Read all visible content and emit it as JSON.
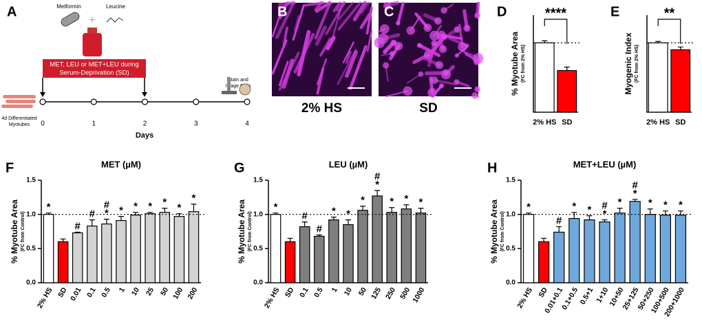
{
  "panel_a": {
    "label": "A",
    "drug1": "Metformin",
    "drug2": "Leucine",
    "treatment": [
      "MET, LEU or MET+LEU during",
      "Serum-Deprivation (SD)"
    ],
    "cells": [
      "4d Differentiated",
      "Myotubes"
    ],
    "stain": [
      "Stain and",
      "Image Cells"
    ],
    "days": [
      "0",
      "1",
      "2",
      "3",
      "4"
    ],
    "xlabel": "Days"
  },
  "images": [
    {
      "label": "B",
      "caption": "2% HS"
    },
    {
      "label": "C",
      "caption": "SD"
    }
  ],
  "chart_data": [
    {
      "type": "bar",
      "panel": "D",
      "ylabel": "% Myotube Area",
      "ylabel_sub": "(FC from 2% HS)",
      "categories": [
        "2% HS",
        "SD"
      ],
      "values": [
        1.0,
        0.6
      ],
      "errors": [
        0.03,
        0.05
      ],
      "colors": [
        "#ffffff",
        "#ff0000"
      ],
      "significance": "****",
      "reference_line": 1.0,
      "ylim": [
        0,
        1.4
      ]
    },
    {
      "type": "bar",
      "panel": "E",
      "ylabel": "Myogenic Index",
      "ylabel_sub": "(FC from 2% HS)",
      "categories": [
        "2% HS",
        "SD"
      ],
      "values": [
        1.0,
        0.9
      ],
      "errors": [
        0.02,
        0.04
      ],
      "colors": [
        "#ffffff",
        "#ff0000"
      ],
      "significance": "**",
      "reference_line": 1.0,
      "ylim": [
        0,
        1.4
      ]
    },
    {
      "type": "bar",
      "panel": "F",
      "title": "MET (µM)",
      "ylabel": "% Myotube Area",
      "ylabel_sub": "(FC from Control)",
      "categories": [
        "2% HS",
        "SD",
        "0.01",
        "0.1",
        "0.5",
        "1",
        "10",
        "25",
        "50",
        "100",
        "200"
      ],
      "values": [
        1.0,
        0.6,
        0.73,
        0.83,
        0.86,
        0.91,
        0.99,
        1.01,
        1.03,
        0.97,
        1.04
      ],
      "errors": [
        0.02,
        0.04,
        0.01,
        0.09,
        0.07,
        0.06,
        0.04,
        0.02,
        0.06,
        0.04,
        0.11
      ],
      "colors": [
        "#ffffff",
        "#ff0000",
        "#d3d3d3",
        "#d3d3d3",
        "#d3d3d3",
        "#d3d3d3",
        "#d3d3d3",
        "#d3d3d3",
        "#d3d3d3",
        "#d3d3d3",
        "#d3d3d3"
      ],
      "markers": [
        [
          "*"
        ],
        [],
        [
          "#"
        ],
        [
          "#"
        ],
        [
          "*",
          "#"
        ],
        [
          "*"
        ],
        [
          "*"
        ],
        [
          "*"
        ],
        [
          "*"
        ],
        [
          "*"
        ],
        [
          "*"
        ]
      ],
      "reference_line": 1.0,
      "ylim": [
        0,
        1.5
      ],
      "yticks": [
        {
          "value": 0,
          "label": "0.0"
        },
        0.5,
        {
          "value": 1,
          "label": "1.0"
        },
        1.5
      ]
    },
    {
      "type": "bar",
      "panel": "G",
      "title": "LEU (µM)",
      "ylabel": "% Myotube Area",
      "ylabel_sub": "(FC from Control)",
      "categories": [
        "2% HS",
        "SD",
        "0.1",
        "0.5",
        "1",
        "10",
        "50",
        "125",
        "250",
        "500",
        "1000"
      ],
      "values": [
        1.0,
        0.6,
        0.82,
        0.68,
        0.92,
        0.85,
        1.06,
        1.27,
        1.03,
        1.08,
        1.02
      ],
      "errors": [
        0.02,
        0.05,
        0.07,
        0.02,
        0.04,
        0.07,
        0.06,
        0.08,
        0.07,
        0.06,
        0.07
      ],
      "colors": [
        "#ffffff",
        "#ff0000",
        "#7f7f7f",
        "#7f7f7f",
        "#7f7f7f",
        "#7f7f7f",
        "#7f7f7f",
        "#7f7f7f",
        "#7f7f7f",
        "#7f7f7f",
        "#7f7f7f"
      ],
      "markers": [
        [
          "*"
        ],
        [],
        [
          "#"
        ],
        [
          "#"
        ],
        [
          "*"
        ],
        [
          "*"
        ],
        [
          "*"
        ],
        [
          "*",
          "#"
        ],
        [
          "*"
        ],
        [
          "*"
        ],
        [
          "*"
        ]
      ],
      "reference_line": 1.0,
      "ylim": [
        0,
        1.5
      ],
      "yticks": [
        {
          "value": 0,
          "label": "0.0"
        },
        0.5,
        {
          "value": 1,
          "label": "1.0"
        },
        1.5
      ]
    },
    {
      "type": "bar",
      "panel": "H",
      "title": "MET+LEU (µM)",
      "ylabel": "% Myotube Area",
      "ylabel_sub": "(FC from Control)",
      "categories": [
        "2% HS",
        "SD",
        "0.01+0.1",
        "0.1+0.5",
        "0.5+1",
        "1+10",
        "10+50",
        "25+125",
        "50+250",
        "100+500",
        "200+1000"
      ],
      "values": [
        1.0,
        0.6,
        0.74,
        0.94,
        0.92,
        0.89,
        1.02,
        1.19,
        1.0,
        0.99,
        0.99
      ],
      "errors": [
        0.02,
        0.05,
        0.08,
        0.09,
        0.06,
        0.03,
        0.07,
        0.03,
        0.08,
        0.06,
        0.06
      ],
      "colors": [
        "#ffffff",
        "#ff0000",
        "#6fa8dc",
        "#6fa8dc",
        "#6fa8dc",
        "#6fa8dc",
        "#6fa8dc",
        "#6fa8dc",
        "#6fa8dc",
        "#6fa8dc",
        "#6fa8dc"
      ],
      "markers": [
        [
          "*"
        ],
        [],
        [
          "#"
        ],
        [
          "*"
        ],
        [
          "*"
        ],
        [
          "*",
          "#"
        ],
        [
          "*"
        ],
        [
          "*",
          "#"
        ],
        [
          "*"
        ],
        [
          "*"
        ],
        [
          "*"
        ]
      ],
      "reference_line": 1.0,
      "ylim": [
        0,
        1.5
      ],
      "yticks": [
        {
          "value": 0,
          "label": "0.0"
        },
        0.5,
        {
          "value": 1,
          "label": "1.0"
        },
        1.5
      ]
    }
  ]
}
